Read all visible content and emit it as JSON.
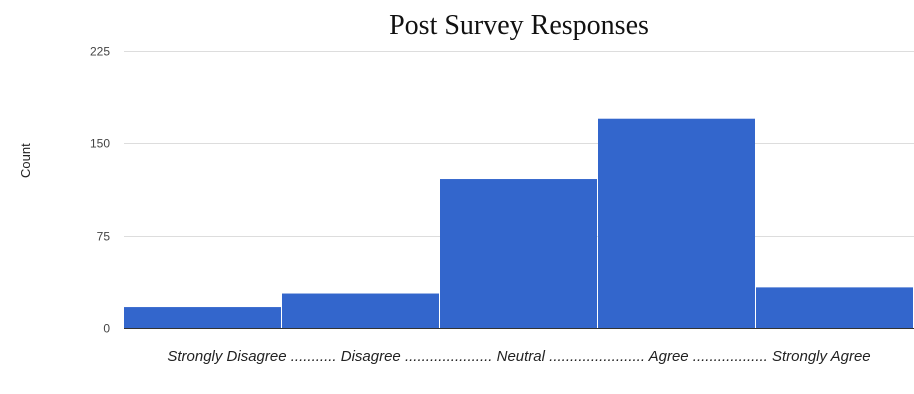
{
  "chart_data": {
    "type": "bar",
    "title": "Post Survey Responses",
    "xlabel": "Strongly Disagree ........... Disagree ..................... Neutral ....................... Agree .................. Strongly Agree",
    "ylabel": "Count",
    "ylim": [
      0,
      225
    ],
    "yticks": [
      "0",
      "75",
      "150",
      "225"
    ],
    "grid": true,
    "legend": "none",
    "categories": [
      "Strongly Disagree",
      "Disagree",
      "Neutral",
      "Agree",
      "Strongly Agree"
    ],
    "values": [
      17,
      28,
      121,
      170,
      33
    ],
    "bar_color": "#3366cc",
    "grid_color": "#dddddd"
  }
}
